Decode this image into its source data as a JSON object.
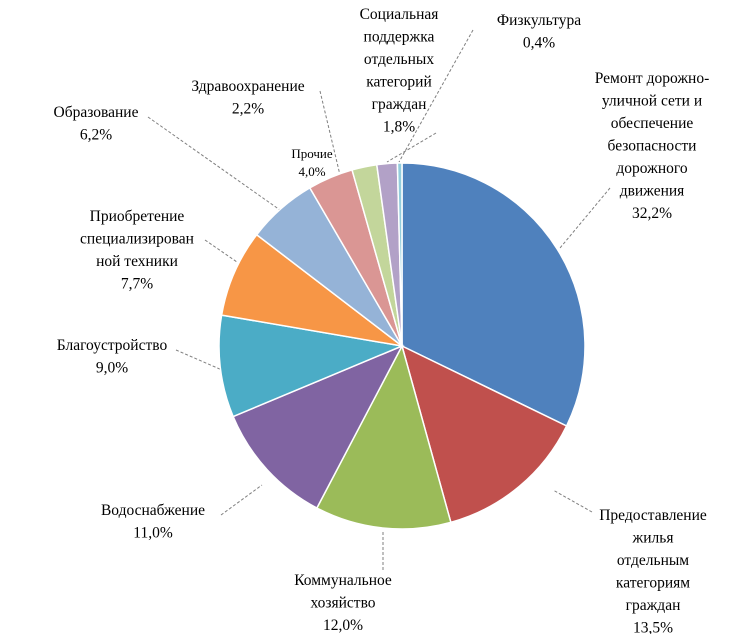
{
  "chart_data": {
    "type": "pie",
    "title": "",
    "series": [
      {
        "slices": [
          {
            "label": [
              "Ремонт дорожно-",
              "уличной сети и",
              "обеспечение",
              "безопасности",
              "дорожного",
              "движения"
            ],
            "value_label": "32,2%",
            "value": 32.2,
            "color": "#4f81bd"
          },
          {
            "label": [
              "Предоставление",
              "жилья",
              "отдельным",
              "категориям",
              "граждан"
            ],
            "value_label": "13,5%",
            "value": 13.5,
            "color": "#c0504d"
          },
          {
            "label": [
              "Коммунальное",
              "хозяйство"
            ],
            "value_label": "12,0%",
            "value": 12.0,
            "color": "#9bbb59"
          },
          {
            "label": [
              "Водоснабжение"
            ],
            "value_label": "11,0%",
            "value": 11.0,
            "color": "#8064a2"
          },
          {
            "label": [
              "Благоустройство"
            ],
            "value_label": "9,0%",
            "value": 9.0,
            "color": "#4bacc6"
          },
          {
            "label": [
              "Приобретение",
              "специализирован",
              "ной техники"
            ],
            "value_label": "7,7%",
            "value": 7.7,
            "color": "#f79646"
          },
          {
            "label": [
              "Образование"
            ],
            "value_label": "6,2%",
            "value": 6.2,
            "color": "#95b3d7"
          },
          {
            "label": [
              "Прочие"
            ],
            "value_label": "4,0%",
            "value": 4.0,
            "color": "#da9694"
          },
          {
            "label": [
              "Здравоохранение"
            ],
            "value_label": "2,2%",
            "value": 2.2,
            "color": "#c3d69b"
          },
          {
            "label": [
              "Социальная",
              "поддержка",
              "отдельных",
              "категорий",
              "граждан"
            ],
            "value_label": "1,8%",
            "value": 1.8,
            "color": "#b2a1c7"
          },
          {
            "label": [
              "Физкультура"
            ],
            "value_label": "0,4%",
            "value": 0.4,
            "color": "#92cddc"
          }
        ]
      }
    ]
  }
}
